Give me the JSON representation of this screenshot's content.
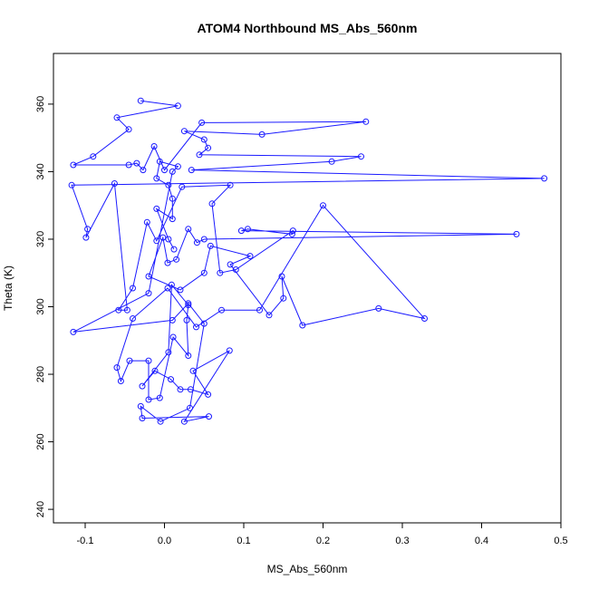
{
  "chart_data": {
    "type": "line",
    "title": "ATOM4 Northbound MS_Abs_560nm",
    "xlabel": "MS_Abs_560nm",
    "ylabel": "Theta (K)",
    "xlim": [
      -0.14,
      0.5
    ],
    "ylim": [
      236,
      375
    ],
    "x_ticks": [
      -0.1,
      0.0,
      0.1,
      0.2,
      0.3,
      0.4,
      0.5
    ],
    "x_tick_labels": [
      "-0.1",
      "0.0",
      "0.1",
      "0.2",
      "0.3",
      "0.4",
      "0.5"
    ],
    "y_ticks": [
      240,
      260,
      280,
      300,
      320,
      340,
      360
    ],
    "y_tick_labels": [
      "240",
      "260",
      "280",
      "300",
      "320",
      "340",
      "360"
    ],
    "grid": false,
    "markers": "open-circle",
    "color": "#1a1aff",
    "series": [
      {
        "points": [
          [
            -0.03,
            361.0
          ],
          [
            0.017,
            359.5
          ],
          [
            -0.06,
            356.0
          ],
          [
            -0.045,
            352.5
          ],
          [
            -0.09,
            344.5
          ],
          [
            -0.115,
            342.0
          ],
          [
            -0.045,
            342.0
          ],
          [
            -0.035,
            342.5
          ],
          [
            -0.027,
            340.5
          ],
          [
            -0.013,
            347.5
          ],
          [
            0.0,
            340.5
          ],
          [
            0.047,
            354.5
          ],
          [
            0.254,
            354.8
          ],
          [
            0.123,
            351.0
          ],
          [
            0.025,
            352.0
          ],
          [
            0.05,
            349.5
          ],
          [
            0.055,
            347.0
          ],
          [
            0.044,
            345.0
          ],
          [
            0.248,
            344.5
          ],
          [
            0.211,
            343.0
          ],
          [
            0.034,
            340.5
          ],
          [
            0.479,
            338.0
          ],
          [
            -0.117,
            336.0
          ],
          [
            -0.097,
            323.0
          ],
          [
            -0.099,
            320.5
          ],
          [
            -0.063,
            336.5
          ],
          [
            -0.047,
            299.0
          ],
          [
            -0.058,
            299.0
          ],
          [
            -0.04,
            305.5
          ],
          [
            -0.022,
            325.0
          ],
          [
            -0.01,
            319.5
          ],
          [
            0.022,
            335.5
          ],
          [
            0.083,
            336.0
          ],
          [
            0.06,
            330.5
          ],
          [
            0.07,
            310.0
          ],
          [
            0.09,
            311.0
          ],
          [
            0.162,
            322.5
          ],
          [
            0.161,
            321.5
          ],
          [
            0.105,
            323.0
          ],
          [
            0.097,
            322.5
          ],
          [
            0.444,
            321.5
          ],
          [
            0.05,
            320.0
          ],
          [
            0.041,
            319.0
          ],
          [
            0.03,
            323.0
          ],
          [
            0.015,
            314.0
          ],
          [
            0.004,
            313.0
          ],
          [
            -0.002,
            320.5
          ],
          [
            -0.02,
            309.0
          ],
          [
            0.02,
            305.0
          ],
          [
            0.05,
            310.0
          ],
          [
            0.058,
            318.0
          ],
          [
            0.108,
            315.0
          ],
          [
            0.083,
            312.5
          ],
          [
            0.132,
            297.5
          ],
          [
            0.15,
            302.5
          ],
          [
            0.148,
            309.0
          ],
          [
            0.174,
            294.5
          ],
          [
            0.27,
            299.5
          ],
          [
            0.328,
            296.5
          ],
          [
            0.2,
            330.0
          ],
          [
            0.12,
            299.0
          ],
          [
            0.072,
            299.0
          ],
          [
            0.04,
            294.0
          ],
          [
            0.004,
            305.5
          ],
          [
            -0.04,
            296.5
          ],
          [
            -0.06,
            282.0
          ],
          [
            -0.055,
            278.0
          ],
          [
            -0.044,
            284.0
          ],
          [
            -0.02,
            284.0
          ],
          [
            -0.02,
            272.5
          ],
          [
            -0.006,
            273.0
          ],
          [
            0.011,
            291.0
          ],
          [
            0.03,
            285.5
          ],
          [
            0.028,
            296.0
          ],
          [
            0.03,
            300.5
          ],
          [
            0.009,
            306.5
          ],
          [
            0.005,
            286.5
          ],
          [
            -0.028,
            276.5
          ],
          [
            -0.012,
            281.0
          ],
          [
            0.008,
            278.5
          ],
          [
            0.02,
            275.5
          ],
          [
            0.033,
            275.5
          ],
          [
            0.055,
            274.0
          ],
          [
            0.036,
            281.0
          ],
          [
            0.082,
            287.0
          ],
          [
            0.025,
            266.0
          ],
          [
            0.056,
            267.5
          ],
          [
            -0.028,
            267.0
          ],
          [
            -0.03,
            270.5
          ],
          [
            -0.005,
            266.0
          ],
          [
            0.032,
            270.0
          ],
          [
            0.05,
            295.0
          ],
          [
            0.03,
            301.0
          ],
          [
            0.01,
            296.0
          ],
          [
            -0.115,
            292.5
          ],
          [
            -0.02,
            304.0
          ],
          [
            0.01,
            340.0
          ],
          [
            0.017,
            341.5
          ],
          [
            -0.006,
            343.0
          ],
          [
            -0.01,
            338.0
          ],
          [
            0.005,
            336.0
          ],
          [
            0.01,
            332.0
          ],
          [
            0.01,
            326.0
          ],
          [
            -0.01,
            329.0
          ],
          [
            0.005,
            320.0
          ],
          [
            0.012,
            317.0
          ]
        ]
      }
    ]
  }
}
